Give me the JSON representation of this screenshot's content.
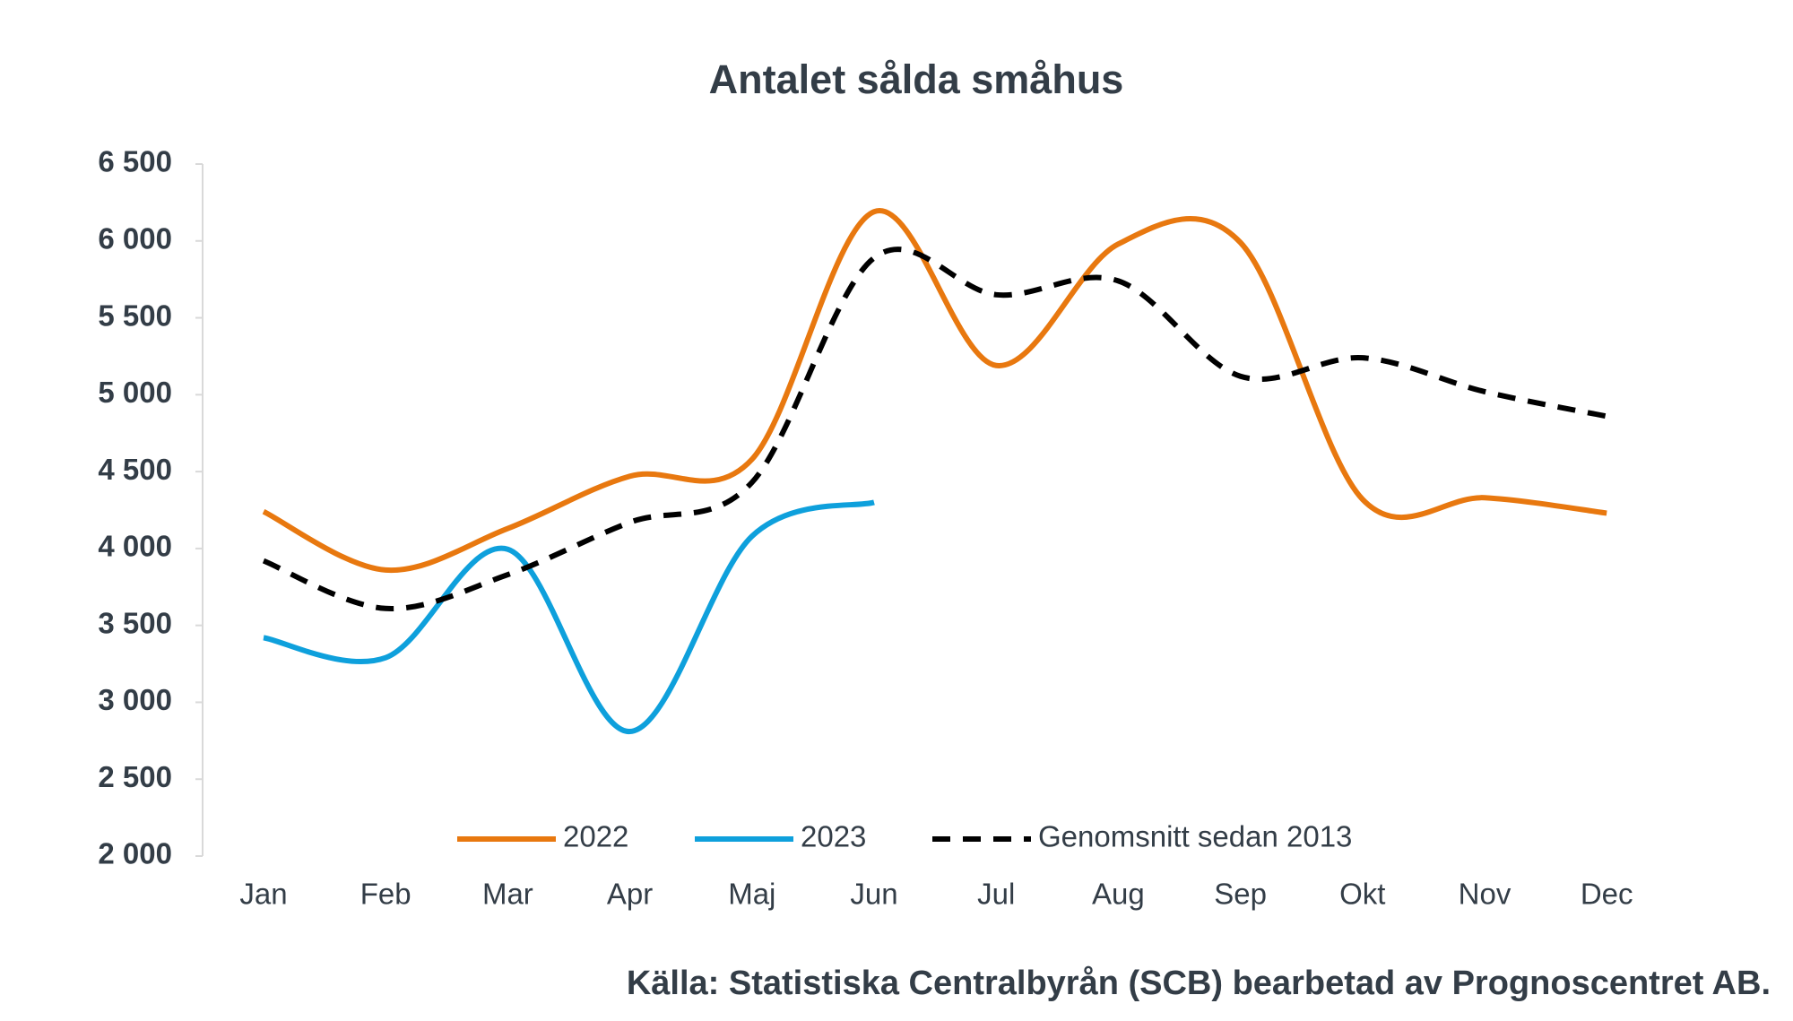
{
  "chart_data": {
    "type": "line",
    "title": "Antalet sålda småhus",
    "categories": [
      "Jan",
      "Feb",
      "Mar",
      "Apr",
      "Maj",
      "Jun",
      "Jul",
      "Aug",
      "Sep",
      "Okt",
      "Nov",
      "Dec"
    ],
    "series": [
      {
        "name": "2022",
        "color": "#e8780f",
        "dash": false,
        "values": [
          4240,
          3860,
          4130,
          4470,
          4580,
          6190,
          5190,
          5980,
          5990,
          4320,
          4330,
          4230
        ]
      },
      {
        "name": "2023",
        "color": "#0ea0dc",
        "dash": false,
        "values": [
          3420,
          3290,
          3995,
          2810,
          4080,
          4300,
          null,
          null,
          null,
          null,
          null,
          null
        ]
      },
      {
        "name": "Genomsnitt sedan 2013",
        "color": "#000000",
        "dash": true,
        "values": [
          3920,
          3610,
          3830,
          4170,
          4430,
          5890,
          5650,
          5740,
          5120,
          5240,
          5020,
          4860
        ]
      }
    ],
    "ylim": [
      2000,
      6500
    ],
    "yticks": [
      {
        "value": 2000,
        "label": "2 000"
      },
      {
        "value": 2500,
        "label": "2 500"
      },
      {
        "value": 3000,
        "label": "3 000"
      },
      {
        "value": 3500,
        "label": "3 500"
      },
      {
        "value": 4000,
        "label": "4 000"
      },
      {
        "value": 4500,
        "label": "4 500"
      },
      {
        "value": 5000,
        "label": "5 000"
      },
      {
        "value": 5500,
        "label": "5 500"
      },
      {
        "value": 6000,
        "label": "6 000"
      },
      {
        "value": 6500,
        "label": "6 500"
      }
    ],
    "grid": false,
    "legend": "bottom",
    "source": "Källa: Statistiska Centralbyrån (SCB) bearbetad av Prognoscentret AB."
  }
}
